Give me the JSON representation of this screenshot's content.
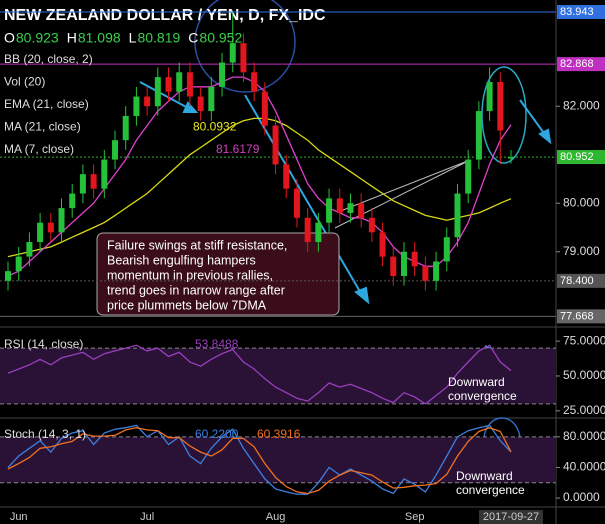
{
  "header": {
    "symbol": "NEW ZEALAND DOLLAR / YEN, D, FX_IDC",
    "ohlc": [
      {
        "label": "O",
        "value": "80.923"
      },
      {
        "label": "H",
        "value": "81.098"
      },
      {
        "label": "L",
        "value": "80.819"
      },
      {
        "label": "C",
        "value": "80.952"
      }
    ],
    "indicators": [
      {
        "label": "BB (20, close, 2)"
      },
      {
        "label": "Vol (20)"
      },
      {
        "label": "EMA (21, close)"
      },
      {
        "label": "MA (21, close)",
        "value": "80.0932"
      },
      {
        "label": "MA (7, close)",
        "value": "81.6179"
      }
    ]
  },
  "annotations": {
    "note": [
      "Failure swings at stiff resistance,",
      "Bearish engulfing hampers",
      "momentum in previous rallies,",
      "trend goes in narrow range after",
      "price plummets below 7DMA"
    ],
    "rsi_note": [
      "Downward",
      "convergence"
    ],
    "stoch_note": [
      "Downward",
      "convergence"
    ]
  },
  "chart_data": [
    {
      "type": "candlestick",
      "categories": [
        null,
        "Jun",
        null,
        null,
        null,
        null,
        null,
        null,
        null,
        null,
        null,
        null,
        null,
        "Jul",
        null,
        null,
        null,
        null,
        null,
        null,
        null,
        null,
        null,
        null,
        null,
        "Aug",
        null,
        null,
        null,
        null,
        null,
        null,
        null,
        null,
        null,
        null,
        null,
        null,
        "Sep",
        null,
        null,
        null,
        null,
        null,
        null,
        null,
        null,
        "2017-09-27"
      ],
      "open": [
        78.4,
        78.6,
        78.9,
        79.2,
        79.6,
        79.4,
        79.9,
        80.2,
        80.6,
        80.3,
        80.9,
        81.3,
        81.8,
        82.2,
        82.0,
        82.6,
        82.3,
        82.7,
        82.2,
        81.9,
        82.4,
        82.9,
        83.3,
        82.7,
        82.3,
        81.6,
        80.8,
        80.3,
        79.7,
        79.2,
        79.6,
        80.1,
        79.8,
        80.0,
        79.7,
        79.4,
        78.9,
        78.5,
        79.0,
        78.7,
        78.4,
        78.8,
        79.3,
        80.2,
        80.9,
        81.9,
        82.5,
        80.923
      ],
      "high": [
        78.8,
        79.1,
        79.4,
        79.8,
        79.8,
        80.1,
        80.4,
        80.8,
        80.8,
        81.1,
        81.5,
        82.0,
        82.4,
        82.4,
        82.8,
        82.8,
        82.9,
        82.9,
        82.4,
        82.6,
        83.1,
        83.943,
        83.5,
        82.9,
        82.5,
        81.8,
        81.0,
        80.5,
        79.9,
        79.8,
        80.3,
        80.3,
        80.2,
        80.2,
        79.9,
        79.6,
        79.1,
        79.2,
        79.2,
        78.9,
        79.0,
        79.5,
        80.4,
        81.1,
        82.1,
        82.8,
        82.7,
        81.098
      ],
      "low": [
        78.2,
        78.4,
        78.7,
        79.0,
        79.2,
        79.2,
        79.7,
        80.0,
        80.1,
        80.1,
        80.7,
        81.1,
        81.6,
        81.8,
        81.8,
        82.1,
        82.1,
        82.0,
        81.7,
        81.7,
        82.2,
        82.7,
        82.5,
        82.1,
        81.4,
        80.6,
        80.1,
        79.5,
        79.0,
        79.0,
        79.4,
        79.6,
        79.6,
        79.5,
        79.2,
        78.7,
        78.3,
        78.3,
        78.5,
        78.2,
        78.2,
        78.6,
        79.1,
        80.0,
        80.7,
        81.7,
        80.8,
        80.819
      ],
      "close": [
        78.6,
        78.9,
        79.2,
        79.6,
        79.4,
        79.9,
        80.2,
        80.6,
        80.3,
        80.9,
        81.3,
        81.8,
        82.2,
        82.0,
        82.6,
        82.3,
        82.7,
        82.2,
        81.9,
        82.4,
        82.9,
        83.3,
        82.7,
        82.3,
        81.6,
        80.8,
        80.3,
        79.7,
        79.2,
        79.6,
        80.1,
        79.8,
        80.0,
        79.7,
        79.4,
        78.9,
        78.5,
        79.0,
        78.7,
        78.4,
        78.8,
        79.3,
        80.2,
        80.9,
        81.9,
        82.5,
        81.5,
        80.952
      ],
      "up_color": "#26c13a",
      "down_color": "#e3161d",
      "series": [
        {
          "name": "MA (21, close)",
          "color": "#d8d818",
          "values": [
            78.9,
            78.95,
            79.0,
            79.05,
            79.1,
            79.2,
            79.3,
            79.4,
            79.5,
            79.6,
            79.75,
            79.9,
            80.05,
            80.2,
            80.4,
            80.6,
            80.8,
            81.0,
            81.15,
            81.3,
            81.45,
            81.6,
            81.7,
            81.75,
            81.75,
            81.7,
            81.6,
            81.45,
            81.3,
            81.1,
            80.95,
            80.8,
            80.65,
            80.5,
            80.35,
            80.2,
            80.05,
            79.95,
            79.85,
            79.75,
            79.7,
            79.65,
            79.7,
            79.75,
            79.8,
            79.9,
            80.0,
            80.0932
          ]
        },
        {
          "name": "MA (7, close)",
          "color": "#e040d0",
          "values": [
            78.5,
            78.6,
            78.8,
            79.0,
            79.2,
            79.4,
            79.6,
            79.8,
            80.0,
            80.3,
            80.6,
            80.9,
            81.3,
            81.6,
            81.9,
            82.1,
            82.3,
            82.4,
            82.4,
            82.4,
            82.5,
            82.6,
            82.6,
            82.5,
            82.3,
            81.9,
            81.4,
            80.9,
            80.4,
            80.1,
            79.9,
            79.8,
            79.7,
            79.7,
            79.6,
            79.4,
            79.1,
            78.9,
            78.8,
            78.7,
            78.7,
            78.9,
            79.2,
            79.6,
            80.2,
            80.8,
            81.3,
            81.6179
          ]
        }
      ],
      "ylim": [
        77.49,
        84.19
      ],
      "yticks": [
        {
          "value": 82,
          "label": "82.000"
        },
        {
          "value": 80,
          "label": "80.000"
        },
        {
          "value": 79,
          "label": "79.000"
        }
      ],
      "price_lines": [
        {
          "value": 83.943,
          "label": "83.943",
          "color": "#2f6fe0"
        },
        {
          "value": 82.868,
          "label": "82.868",
          "color": "#c030c0"
        },
        {
          "value": 80.952,
          "label": "80.952",
          "color": "#2fb82f"
        },
        {
          "value": 78.4,
          "label": "78.400",
          "color": "#555555"
        },
        {
          "value": 77.668,
          "label": "77.668",
          "color": "#666666"
        }
      ]
    },
    {
      "type": "line",
      "title": "RSI (14, close)",
      "series": [
        {
          "name": "RSI",
          "color": "#9a3fc0",
          "value_label": "53.8488",
          "values": [
            52,
            55,
            58,
            62,
            58,
            63,
            65,
            67,
            62,
            66,
            68,
            70,
            72,
            68,
            70,
            64,
            67,
            60,
            57,
            62,
            66,
            69,
            60,
            55,
            48,
            42,
            38,
            34,
            32,
            38,
            45,
            42,
            44,
            41,
            38,
            34,
            31,
            38,
            35,
            30,
            36,
            42,
            52,
            60,
            68,
            72,
            60,
            53.8488
          ]
        }
      ],
      "bands": [
        30,
        70
      ],
      "ylim": [
        22,
        83
      ],
      "yticks": [
        {
          "value": 75,
          "label": "75.0000"
        },
        {
          "value": 50,
          "label": "50.0000"
        },
        {
          "value": 25,
          "label": "25.0000"
        }
      ]
    },
    {
      "type": "line",
      "title": "Stoch (14, 3, 1)",
      "series": [
        {
          "name": "%K",
          "color": "#3d7fe0",
          "value_label": "60.2200",
          "values": [
            40,
            55,
            65,
            75,
            60,
            78,
            85,
            88,
            70,
            85,
            90,
            92,
            95,
            80,
            88,
            70,
            80,
            55,
            45,
            65,
            80,
            90,
            65,
            45,
            25,
            12,
            8,
            5,
            5,
            20,
            40,
            30,
            38,
            30,
            22,
            12,
            6,
            25,
            18,
            8,
            30,
            55,
            80,
            88,
            92,
            95,
            75,
            60.22
          ]
        },
        {
          "name": "%D",
          "color": "#f07020",
          "value_label": "60.3916",
          "values": [
            38,
            45,
            53,
            65,
            67,
            71,
            74,
            84,
            81,
            81,
            82,
            89,
            92,
            89,
            88,
            79,
            79,
            68,
            60,
            55,
            63,
            78,
            78,
            67,
            45,
            27,
            15,
            8,
            6,
            10,
            22,
            30,
            36,
            33,
            30,
            21,
            13,
            14,
            16,
            17,
            19,
            31,
            55,
            74,
            87,
            92,
            87,
            60.3916
          ]
        }
      ],
      "bands": [
        20,
        80
      ],
      "ylim": [
        -15.6,
        102
      ],
      "yticks": [
        {
          "value": 80,
          "label": "80.0000"
        },
        {
          "value": 40,
          "label": "40.0000"
        },
        {
          "value": 0,
          "label": "0.0000"
        }
      ]
    }
  ]
}
